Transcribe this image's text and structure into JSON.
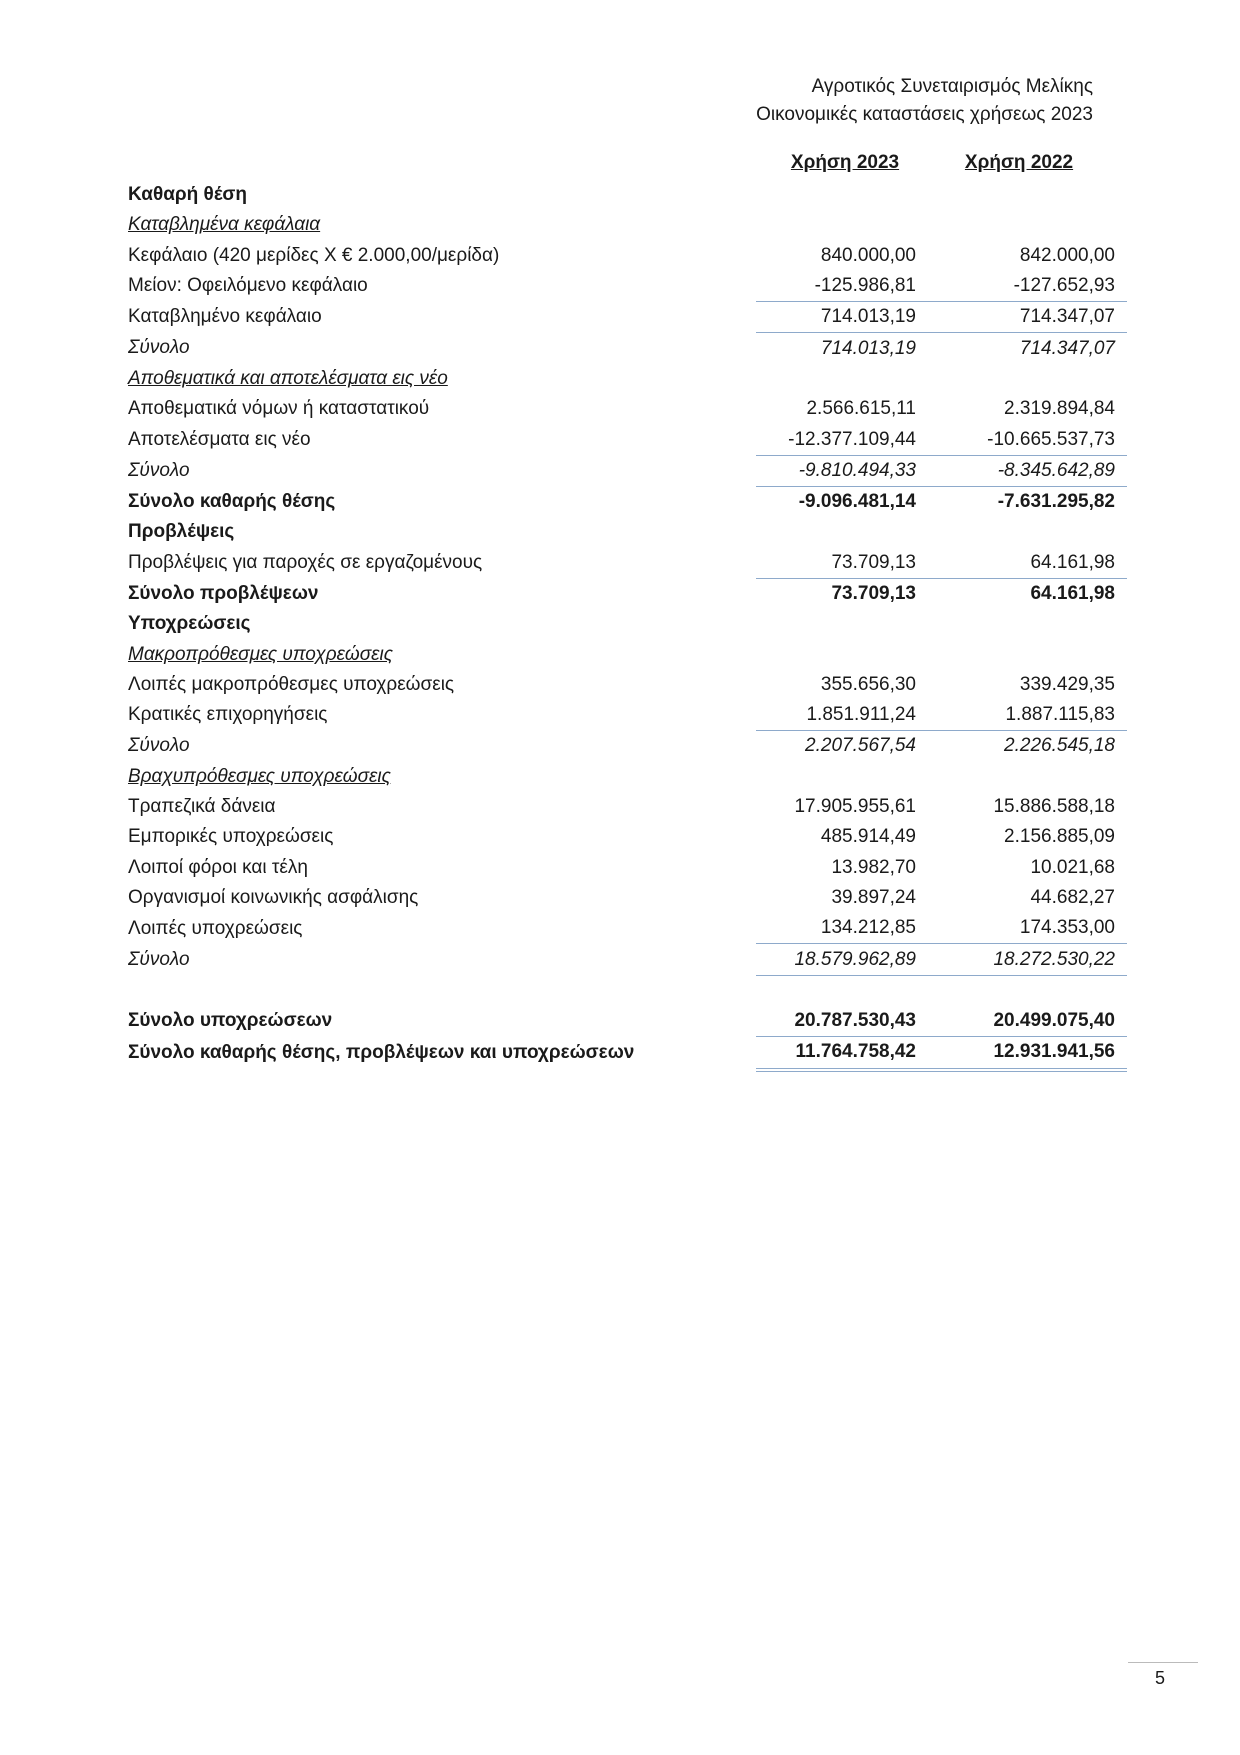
{
  "header": {
    "organization": "Αγροτικός Συνεταιρισμός Μελίκης",
    "document_title": "Οικονομικές καταστάσεις χρήσεως 2023"
  },
  "columns": [
    "Χρήση 2023",
    "Χρήση 2022"
  ],
  "rows": [
    {
      "label": "Καθαρή θέση",
      "v2023": "",
      "v2022": "",
      "style": "bold"
    },
    {
      "label": "Καταβλημένα κεφάλαια",
      "v2023": "",
      "v2022": "",
      "style": "heading"
    },
    {
      "label": "Κεφάλαιο (420 μερίδες Χ € 2.000,00/μερίδα)",
      "v2023": "840.000,00",
      "v2022": "842.000,00",
      "style": ""
    },
    {
      "label": "Μείον: Οφειλόμενο κεφάλαιο",
      "v2023": "-125.986,81",
      "v2022": "-127.652,93",
      "style": ""
    },
    {
      "label": "Καταβλημένο κεφάλαιο",
      "v2023": "714.013,19",
      "v2022": "714.347,07",
      "style": "bt"
    },
    {
      "label": "Σύνολο",
      "v2023": "714.013,19",
      "v2022": "714.347,07",
      "style": "italic bt"
    },
    {
      "label": "Αποθεματικά και αποτελέσματα εις νέο",
      "v2023": "",
      "v2022": "",
      "style": "heading"
    },
    {
      "label": "Αποθεματικά νόμων ή καταστατικού",
      "v2023": "2.566.615,11",
      "v2022": "2.319.894,84",
      "style": ""
    },
    {
      "label": "Αποτελέσματα εις νέο",
      "v2023": "-12.377.109,44",
      "v2022": "-10.665.537,73",
      "style": ""
    },
    {
      "label": "Σύνολο",
      "v2023": "-9.810.494,33",
      "v2022": "-8.345.642,89",
      "style": "italic bt"
    },
    {
      "label": "Σύνολο καθαρής θέσης",
      "v2023": "-9.096.481,14",
      "v2022": "-7.631.295,82",
      "style": "bold bt"
    },
    {
      "label": "Προβλέψεις",
      "v2023": "",
      "v2022": "",
      "style": "bold"
    },
    {
      "label": "Προβλέψεις για παροχές σε εργαζομένους",
      "v2023": "73.709,13",
      "v2022": "64.161,98",
      "style": ""
    },
    {
      "label": "Σύνολο προβλέψεων",
      "v2023": "73.709,13",
      "v2022": "64.161,98",
      "style": "bold bt"
    },
    {
      "label": "Υποχρεώσεις",
      "v2023": "",
      "v2022": "",
      "style": "bold"
    },
    {
      "label": "Μακροπρόθεσμες υποχρεώσεις",
      "v2023": "",
      "v2022": "",
      "style": "heading"
    },
    {
      "label": "Λοιπές μακροπρόθεσμες υποχρεώσεις",
      "v2023": "355.656,30",
      "v2022": "339.429,35",
      "style": ""
    },
    {
      "label": "Κρατικές επιχορηγήσεις",
      "v2023": "1.851.911,24",
      "v2022": "1.887.115,83",
      "style": ""
    },
    {
      "label": "Σύνολο",
      "v2023": "2.207.567,54",
      "v2022": "2.226.545,18",
      "style": "italic bt"
    },
    {
      "label": "Βραχυπρόθεσμες υποχρεώσεις",
      "v2023": "",
      "v2022": "",
      "style": "heading"
    },
    {
      "label": "Τραπεζικά δάνεια",
      "v2023": "17.905.955,61",
      "v2022": "15.886.588,18",
      "style": ""
    },
    {
      "label": "Εμπορικές υποχρεώσεις",
      "v2023": "485.914,49",
      "v2022": "2.156.885,09",
      "style": ""
    },
    {
      "label": "Λοιποί φόροι και τέλη",
      "v2023": "13.982,70",
      "v2022": "10.021,68",
      "style": ""
    },
    {
      "label": "Οργανισμοί κοινωνικής ασφάλισης",
      "v2023": "39.897,24",
      "v2022": "44.682,27",
      "style": ""
    },
    {
      "label": "Λοιπές υποχρεώσεις",
      "v2023": "134.212,85",
      "v2022": "174.353,00",
      "style": ""
    },
    {
      "label": "Σύνολο",
      "v2023": "18.579.962,89",
      "v2022": "18.272.530,22",
      "style": "italic bt bb"
    },
    {
      "label": "",
      "v2023": "",
      "v2022": "",
      "style": ""
    },
    {
      "label": "Σύνολο υποχρεώσεων",
      "v2023": "20.787.530,43",
      "v2022": "20.499.075,40",
      "style": "bold"
    },
    {
      "label": "Σύνολο καθαρής θέσης, προβλέψεων και υποχρεώσεων",
      "v2023": "11.764.758,42",
      "v2022": "12.931.941,56",
      "style": "bold bt dbl"
    }
  ],
  "page_number": "5"
}
